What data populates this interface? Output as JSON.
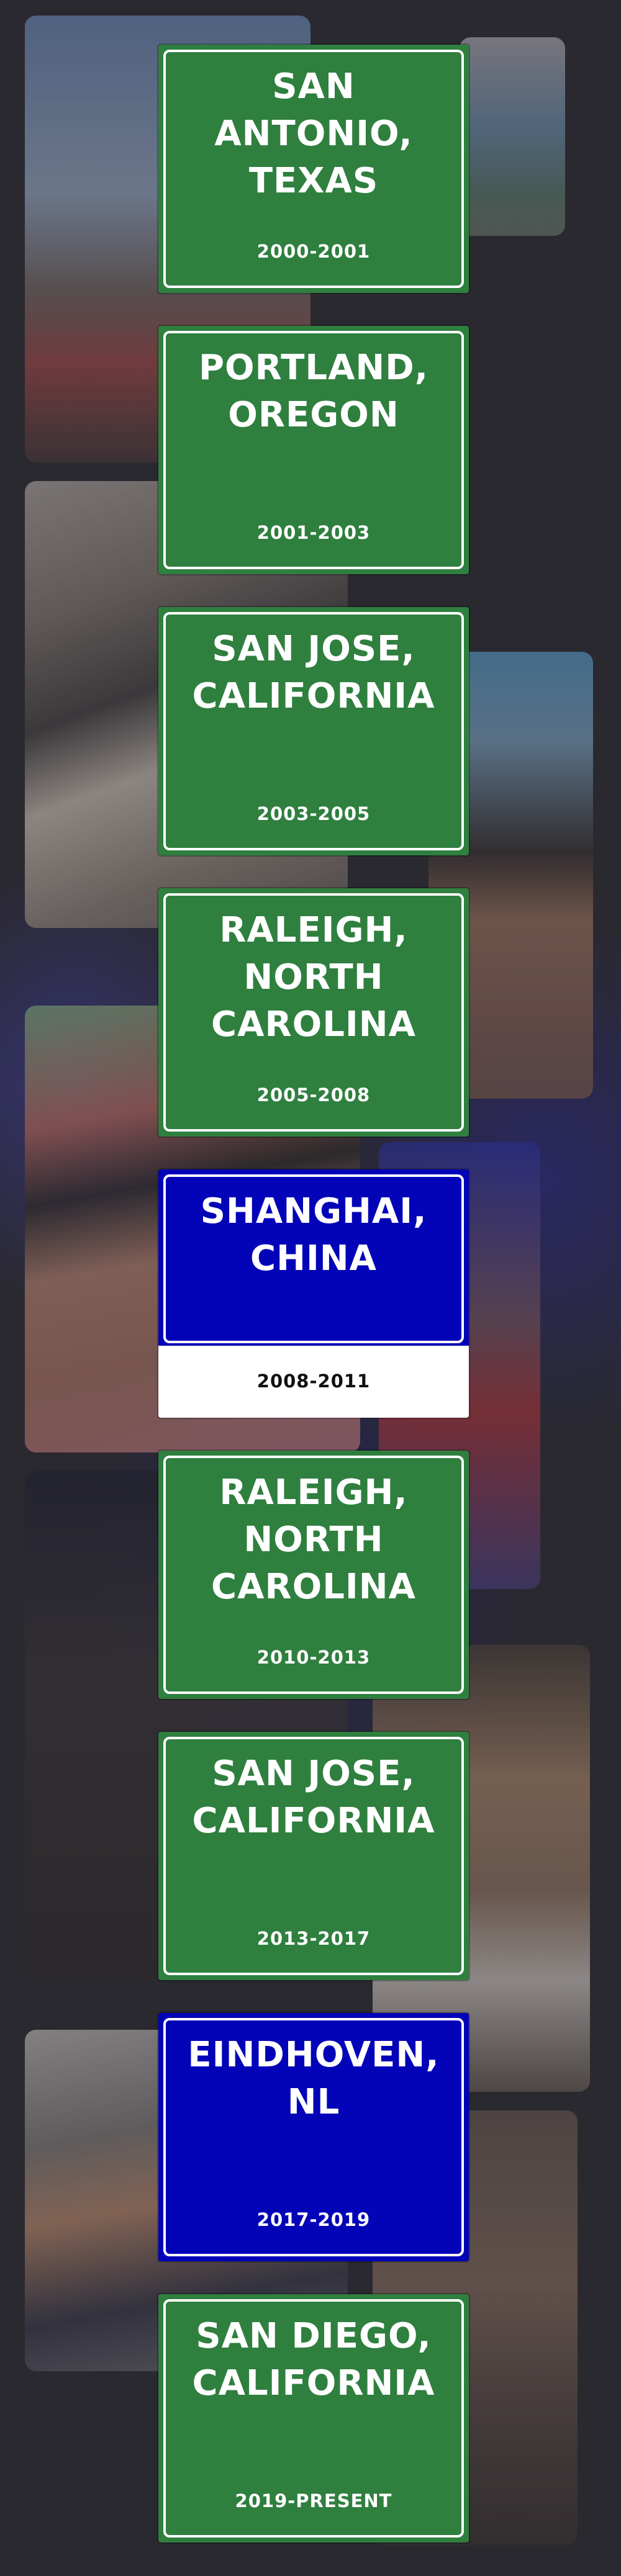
{
  "colors": {
    "page_background": "#2c2a31",
    "green_sign": "#2f7f3f",
    "blue_sign": "#0303b8",
    "sign_text": "#ffffff"
  },
  "timeline": [
    {
      "city": "SAN\nANTONIO,\nTEXAS",
      "years": "2000-2001",
      "color": "green"
    },
    {
      "city": "PORTLAND,\nOREGON",
      "years": "2001-2003",
      "color": "green"
    },
    {
      "city": "SAN JOSE,\nCALIFORNIA",
      "years": "2003-2005",
      "color": "green"
    },
    {
      "city": "RALEIGH,\nNORTH\nCAROLINA",
      "years": "2005-2008",
      "color": "green"
    },
    {
      "city": "SHANGHAI,\nCHINA",
      "years": "2008-2011",
      "color": "blue-white"
    },
    {
      "city": "RALEIGH,\nNORTH\nCAROLINA",
      "years": "2010-2013",
      "color": "green"
    },
    {
      "city": "SAN JOSE,\nCALIFORNIA",
      "years": "2013-2017",
      "color": "green"
    },
    {
      "city": "EINDHOVEN,\nNL",
      "years": "2017-2019",
      "color": "blue"
    },
    {
      "city": "SAN DIEGO,\nCALIFORNIA",
      "years": "2019-PRESENT",
      "color": "green"
    }
  ]
}
